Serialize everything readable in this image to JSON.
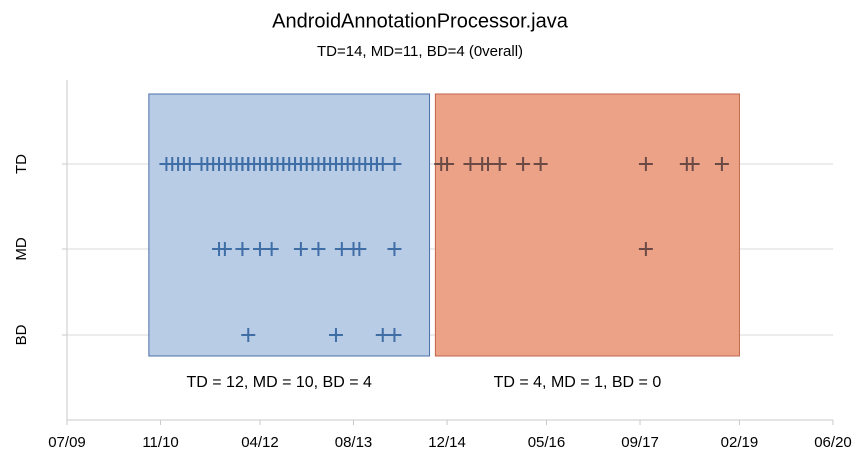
{
  "chart_data": {
    "type": "scatter",
    "title": "AndroidAnnotationProcessor.java",
    "subtitle": "TD=14, MD=11, BD=4 (0verall)",
    "categories": [
      "TD",
      "MD",
      "BD"
    ],
    "xlim": [
      "2009-07",
      "2020-06"
    ],
    "xticks": [
      {
        "value": "2009-07",
        "label": "07/09"
      },
      {
        "value": "2010-11",
        "label": "11/10"
      },
      {
        "value": "2012-04",
        "label": "04/12"
      },
      {
        "value": "2013-08",
        "label": "08/13"
      },
      {
        "value": "2014-12",
        "label": "12/14"
      },
      {
        "value": "2016-05",
        "label": "05/16"
      },
      {
        "value": "2017-09",
        "label": "09/17"
      },
      {
        "value": "2019-02",
        "label": "02/19"
      },
      {
        "value": "2020-06",
        "label": "06/20"
      }
    ],
    "grid": true,
    "regions": [
      {
        "start": "2010-09",
        "end": "2014-09",
        "fill": "#b8cce6",
        "edge": "#4a70a8",
        "marker": "#3f6ea6",
        "label": "TD = 12, MD = 10, BD = 4"
      },
      {
        "start": "2014-10",
        "end": "2019-02",
        "fill": "#eca286",
        "edge": "#c0654c",
        "marker": "#6b4a46",
        "label": "TD = 4, MD = 1, BD = 0"
      }
    ],
    "series": [
      {
        "name": "TD",
        "x": [
          "2010-12",
          "2011-01",
          "2011-02",
          "2011-03",
          "2011-03",
          "2011-04",
          "2011-06",
          "2011-07",
          "2011-08",
          "2011-09",
          "2011-10",
          "2011-11",
          "2011-12",
          "2011-12",
          "2012-01",
          "2012-01",
          "2012-02",
          "2012-02",
          "2012-03",
          "2012-04",
          "2012-05",
          "2012-05",
          "2012-06",
          "2012-06",
          "2012-07",
          "2012-08",
          "2012-08",
          "2012-09",
          "2012-10",
          "2012-10",
          "2012-11",
          "2012-11",
          "2012-12",
          "2013-01",
          "2013-02",
          "2013-03",
          "2013-03",
          "2013-04",
          "2013-05",
          "2013-05",
          "2013-06",
          "2013-07",
          "2013-08",
          "2013-08",
          "2013-09",
          "2013-10",
          "2013-11",
          "2013-12",
          "2013-12",
          "2014-01",
          "2014-03",
          "2014-11",
          "2014-12",
          "2015-04",
          "2015-06",
          "2015-07",
          "2015-09",
          "2016-01",
          "2016-04",
          "2017-10",
          "2018-05",
          "2018-06",
          "2018-11"
        ]
      },
      {
        "name": "MD",
        "x": [
          "2011-09",
          "2011-10",
          "2012-01",
          "2012-04",
          "2012-06",
          "2012-11",
          "2013-02",
          "2013-06",
          "2013-08",
          "2013-09",
          "2014-03",
          "2017-10"
        ]
      },
      {
        "name": "BD",
        "x": [
          "2012-02",
          "2013-05",
          "2014-01",
          "2014-03"
        ]
      }
    ]
  }
}
